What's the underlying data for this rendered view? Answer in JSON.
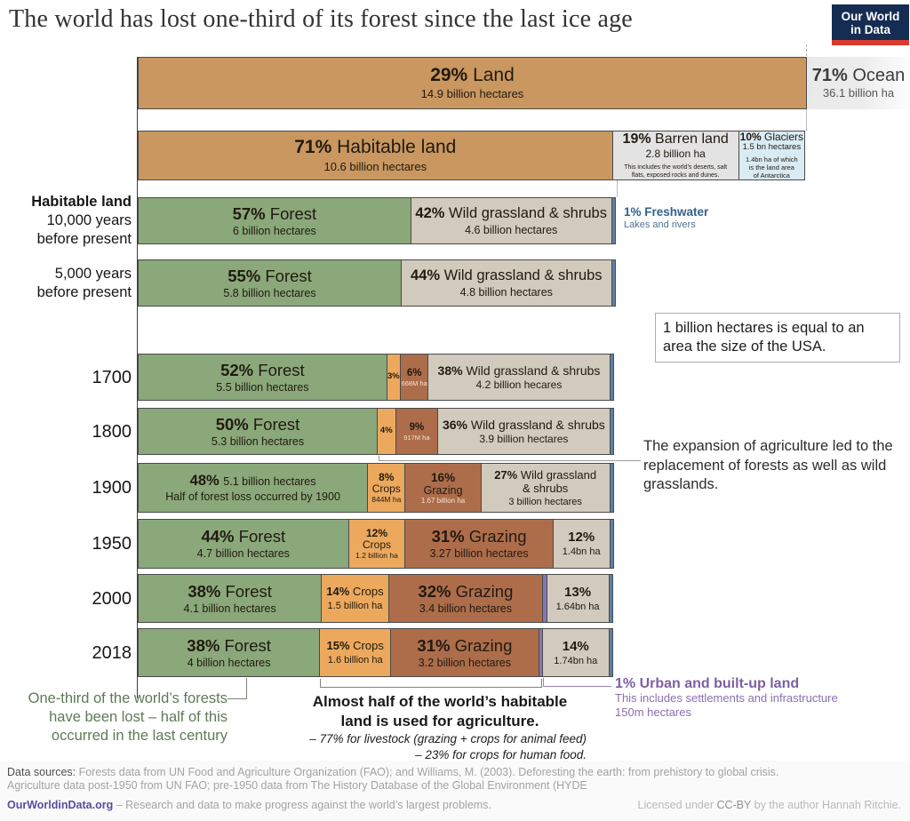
{
  "header": {
    "title": "The world has lost one-third of its forest since the last ice age",
    "logo_line1": "Our World",
    "logo_line2": "in Data"
  },
  "colors": {
    "land_tan": "#c9975f",
    "forest_green": "#8aa87a",
    "wild_beige": "#d2cabc",
    "freshwater_blue": "#5d80a5",
    "crops_orange": "#eca95e",
    "grazing_brown": "#ad6d4b",
    "urban_purple": "#8577b5",
    "barren_gray": "#e3e3e3",
    "glacier_blue": "#d9ebf3",
    "logo_navy": "#152c53",
    "logo_red": "#d93a30",
    "annotation_green": "#5d7b55",
    "annotation_purple": "#7d5fa0",
    "freshwater_text": "#33618e"
  },
  "chart_data": {
    "type": "bar",
    "title": "The world has lost one-third of its forest since the last ice age",
    "unit": "percent of parent bar; areas in hectares",
    "legend_position": "labels inside segments",
    "rows": [
      {
        "id": "surface",
        "axis": null,
        "segments": [
          {
            "color": "tan",
            "pct": 29,
            "v": "hero",
            "pct_label": "29%",
            "name": "Land",
            "sub": "14.9 billion hectares"
          },
          {
            "color": "ocean",
            "pct": 71,
            "v": "ocean",
            "pct_label": "71%",
            "name": "Ocean",
            "sub": "36.1 billion ha",
            "clipped": true
          }
        ]
      },
      {
        "id": "land",
        "axis": null,
        "segments": [
          {
            "color": "tan",
            "pct": 71,
            "v": "hero",
            "pct_label": "71%",
            "name": "Habitable land",
            "sub": "10.6 billion hectares"
          },
          {
            "color": "barren",
            "pct": 19,
            "v": "barren",
            "pct_label": "19%",
            "name": "Barren land",
            "sub": "2.8 billion ha",
            "note": "This includes the world’s deserts, salt\nflats,  exposed rocks and dunes."
          },
          {
            "color": "glacier",
            "pct": 10,
            "v": "glacier",
            "pct_label": "10%",
            "name": "Glaciers",
            "sub": "1.5 bn hectares",
            "note": "1.4bn ha of which\nis the land area\nof Antarctica"
          }
        ]
      },
      {
        "id": "y10000",
        "axis": {
          "lines": [
            "Habitable land",
            "10,000 years",
            "before present"
          ],
          "bold_first": true
        },
        "segments": [
          {
            "color": "forest",
            "pct": 57,
            "v": "lg",
            "pct_label": "57%",
            "name": "Forest",
            "sub": "6 billion hectares"
          },
          {
            "color": "wild",
            "pct": 42,
            "v": "wlg",
            "pct_label": "42%",
            "name": "Wild grassland & shrubs",
            "sub": "4.6 billion hectares"
          },
          {
            "color": "fresh",
            "pct": 1,
            "pct_label": "1%",
            "name": "Freshwater"
          }
        ]
      },
      {
        "id": "y5000",
        "axis": {
          "lines": [
            "5,000 years",
            "before present"
          ]
        },
        "segments": [
          {
            "color": "forest",
            "pct": 55,
            "v": "lg",
            "pct_label": "55%",
            "name": "Forest",
            "sub": "5.8 billion hectares"
          },
          {
            "color": "wild",
            "pct": 44,
            "v": "wlg",
            "pct_label": "44%",
            "name": "Wild grassland & shrubs",
            "sub": "4.8 billion hectares"
          },
          {
            "color": "fresh",
            "pct": 1,
            "pct_label": "1%",
            "name": "Freshwater"
          }
        ]
      },
      {
        "id": "1700",
        "axis": {
          "lines": [
            "1700"
          ],
          "year": true
        },
        "segments": [
          {
            "color": "forest",
            "pct": 52,
            "v": "lg",
            "pct_label": "52%",
            "name": "Forest",
            "sub": "5.5 billion hectares"
          },
          {
            "color": "crops",
            "pct": 3,
            "v": "xs",
            "pct_label": "3%",
            "name": "Crops"
          },
          {
            "color": "graz",
            "pct": 6,
            "v": "grzsm",
            "pct_label": "6%",
            "name": "Grazing",
            "sub": "668M ha"
          },
          {
            "color": "wild",
            "pct": 38,
            "v": "md",
            "pct_label": "38%",
            "name": "Wild grassland & shrubs",
            "sub": "4.2 billion hecares"
          },
          {
            "color": "fresh",
            "pct": 1,
            "pct_label": "1%",
            "name": "Freshwater"
          }
        ]
      },
      {
        "id": "1800",
        "axis": {
          "lines": [
            "1800"
          ],
          "year": true
        },
        "segments": [
          {
            "color": "forest",
            "pct": 50,
            "v": "lg",
            "pct_label": "50%",
            "name": "Forest",
            "sub": "5.3 billion hectares"
          },
          {
            "color": "crops",
            "pct": 4,
            "v": "xs",
            "pct_label": "4%",
            "name": "Crops"
          },
          {
            "color": "graz",
            "pct": 9,
            "v": "grzsm",
            "pct_label": "9%",
            "name": "Grazing",
            "sub": "917M ha"
          },
          {
            "color": "wild",
            "pct": 36,
            "v": "md",
            "pct_label": "36%",
            "name": "Wild grassland & shrubs",
            "sub": "3.9 billion hectares"
          },
          {
            "color": "fresh",
            "pct": 1,
            "pct_label": "1%",
            "name": "Freshwater"
          }
        ]
      },
      {
        "id": "1900",
        "axis": {
          "lines": [
            "1900"
          ],
          "year": true
        },
        "segments": [
          {
            "color": "forest",
            "pct": 48,
            "v": "f1900",
            "pct_label": "48%",
            "name": "Forest",
            "sub": "5.1 billion hectares",
            "note": "Half of forest loss occurred by 1900"
          },
          {
            "color": "crops",
            "pct": 8,
            "v": "stack",
            "pct_label": "8%",
            "name": "Crops",
            "sub": "844M ha"
          },
          {
            "color": "graz",
            "pct": 16,
            "v": "grz",
            "pct_label": "16%",
            "name": "Grazing",
            "sub": "1.67 billion ha"
          },
          {
            "color": "wild",
            "pct": 27,
            "v": "w3",
            "pct_label": "27%",
            "name": "Wild grassland",
            "name2": "& shrubs",
            "sub": "3 billion hectares"
          },
          {
            "color": "fresh",
            "pct": 1,
            "pct_label": "1%",
            "name": "Freshwater"
          }
        ]
      },
      {
        "id": "1950",
        "axis": {
          "lines": [
            "1950"
          ],
          "year": true
        },
        "segments": [
          {
            "color": "forest",
            "pct": 44,
            "v": "lg",
            "pct_label": "44%",
            "name": "Forest",
            "sub": "4.7 billion hectares"
          },
          {
            "color": "crops",
            "pct": 12,
            "v": "stack",
            "pct_label": "12%",
            "name": "Crops",
            "sub": "1.2 billion ha"
          },
          {
            "color": "graz",
            "pct": 31,
            "v": "lg",
            "pct_label": "31%",
            "name": "Grazing",
            "sub": "3.27 billion hectares"
          },
          {
            "color": "wild",
            "pct": 12,
            "v": "tag",
            "pct_label": "12%",
            "name": "Wild grassland & shrubs",
            "sub": "1.4bn ha"
          },
          {
            "color": "fresh",
            "pct": 1,
            "pct_label": "1%",
            "name": "Freshwater"
          }
        ]
      },
      {
        "id": "2000",
        "axis": {
          "lines": [
            "2000"
          ],
          "year": true
        },
        "segments": [
          {
            "color": "forest",
            "pct": 38,
            "v": "lg",
            "pct_label": "38%",
            "name": "Forest",
            "sub": "4.1 billion hectares"
          },
          {
            "color": "crops",
            "pct": 14,
            "v": "cr",
            "pct_label": "14%",
            "name": "Crops",
            "sub": "1.5 billion ha"
          },
          {
            "color": "graz",
            "pct": 32,
            "v": "lg",
            "pct_label": "32%",
            "name": "Grazing",
            "sub": "3.4 billion hectares"
          },
          {
            "color": "urban",
            "pct": 1,
            "pct_label": "1%",
            "name": "Urban"
          },
          {
            "color": "wild",
            "pct": 13,
            "v": "tag",
            "pct_label": "13%",
            "name": "Wild grassland & shrubs",
            "sub": "1.64bn ha"
          },
          {
            "color": "fresh",
            "pct": 1,
            "pct_label": "1%",
            "name": "Freshwater"
          }
        ]
      },
      {
        "id": "2018",
        "axis": {
          "lines": [
            "2018"
          ],
          "year": true
        },
        "segments": [
          {
            "color": "forest",
            "pct": 38,
            "v": "lg",
            "pct_label": "38%",
            "name": "Forest",
            "sub": "4 billion hectares"
          },
          {
            "color": "crops",
            "pct": 15,
            "v": "cr",
            "pct_label": "15%",
            "name": "Crops",
            "sub": "1.6 billion ha"
          },
          {
            "color": "graz",
            "pct": 31,
            "v": "lg",
            "pct_label": "31%",
            "name": "Grazing",
            "sub": "3.2 billion hectares"
          },
          {
            "color": "urban",
            "pct": 1,
            "pct_label": "1%",
            "name": "Urban"
          },
          {
            "color": "wild",
            "pct": 14,
            "v": "tag",
            "pct_label": "14%",
            "name": "Wild grassland & shrubs",
            "sub": "1.74bn ha"
          },
          {
            "color": "fresh",
            "pct": 1,
            "pct_label": "1%",
            "name": "Freshwater"
          }
        ]
      }
    ]
  },
  "annotations": {
    "freshwater": {
      "title": "1% Freshwater",
      "sub": "Lakes and rivers"
    },
    "usa_box": {
      "text": "1 billion hectares is equal to an area the size of the USA."
    },
    "expansion": {
      "text": "The expansion of agriculture led to the replacement of forests as well as wild grasslands."
    },
    "forest_loss": {
      "lines": [
        "One-third of the world’s forests",
        "have been lost – half of this",
        "occurred in the last century"
      ]
    },
    "habitable_half": {
      "title_line1": "Almost half of the world’s habitable",
      "title_line2": "land is used for agriculture.",
      "bullet1": "– 77% for livestock (grazing + crops for animal feed)",
      "bullet2": "– 23% for crops for human food."
    },
    "urban": {
      "title": "1% Urban and built-up land",
      "sub": "This includes settlements and infrastructure",
      "amount": "150m hectares"
    }
  },
  "footer": {
    "sources_label": "Data sources:",
    "sources_rest": " Forests data from UN  Food and Agriculture Organization (FAO); and Williams, M. (2003). Deforesting the earth: from prehistory to global crisis.",
    "sources_line2": "Agriculture data post-1950 from UN FAO; pre-1950 data from The History Database of the Global Environment (HYDE",
    "site": "OurWorldinData.org",
    "site_rest": " – Research and data to make progress against the world’s largest problems.",
    "license_pre": "Licensed under ",
    "license_cc": "CC-BY",
    "license_post": " by the author Hannah Ritchie."
  }
}
